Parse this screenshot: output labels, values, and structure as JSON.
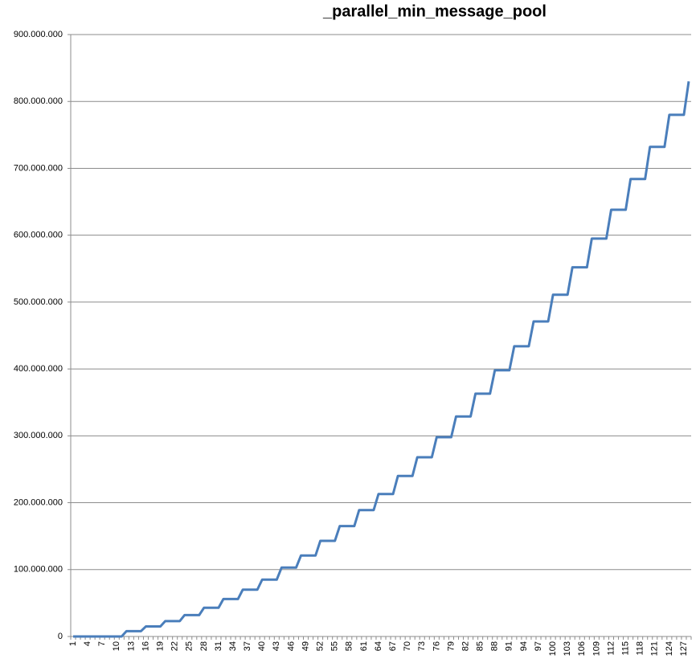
{
  "chart_data": {
    "type": "line",
    "title": "_parallel_min_message_pool",
    "categories": [
      "1",
      null,
      null,
      "4",
      null,
      null,
      "7",
      null,
      null,
      "10",
      null,
      null,
      "13",
      null,
      null,
      "16",
      null,
      null,
      "19",
      null,
      null,
      "22",
      null,
      null,
      "25",
      null,
      null,
      "28",
      null,
      null,
      "31",
      null,
      null,
      "34",
      null,
      null,
      "37",
      null,
      null,
      "40",
      null,
      null,
      "43",
      null,
      null,
      "46",
      null,
      null,
      "49",
      null,
      null,
      "52",
      null,
      null,
      "55",
      null,
      null,
      "58",
      null,
      null,
      "61",
      null,
      null,
      "64",
      null,
      null,
      "67",
      null,
      null,
      "70",
      null,
      null,
      "73",
      null,
      null,
      "76",
      null,
      null,
      "79",
      null,
      null,
      "82",
      null,
      null,
      "85",
      null,
      null,
      "88",
      null,
      null,
      "91",
      null,
      null,
      "94",
      null,
      null,
      "97",
      null,
      null,
      "100",
      null,
      null,
      "103",
      null,
      null,
      "106",
      null,
      null,
      "109",
      null,
      null,
      "112",
      null,
      null,
      "115",
      null,
      null,
      "118",
      null,
      null,
      "121",
      null,
      null,
      "124",
      null,
      null,
      "127",
      null
    ],
    "series": [
      {
        "name": "_parallel_min_message_pool",
        "color": "#4a7ebb",
        "values": [
          0,
          0,
          0,
          0,
          0,
          0,
          0,
          0,
          0,
          0,
          0,
          8000000,
          8000000,
          8000000,
          8000000,
          15000000,
          15000000,
          15000000,
          15000000,
          23000000,
          23000000,
          23000000,
          23000000,
          32000000,
          32000000,
          32000000,
          32000000,
          43000000,
          43000000,
          43000000,
          43000000,
          56000000,
          56000000,
          56000000,
          56000000,
          70000000,
          70000000,
          70000000,
          70000000,
          85000000,
          85000000,
          85000000,
          85000000,
          103000000,
          103000000,
          103000000,
          103000000,
          121000000,
          121000000,
          121000000,
          121000000,
          143000000,
          143000000,
          143000000,
          143000000,
          165000000,
          165000000,
          165000000,
          165000000,
          189000000,
          189000000,
          189000000,
          189000000,
          213000000,
          213000000,
          213000000,
          213000000,
          240000000,
          240000000,
          240000000,
          240000000,
          268000000,
          268000000,
          268000000,
          268000000,
          298000000,
          298000000,
          298000000,
          298000000,
          329000000,
          329000000,
          329000000,
          329000000,
          363000000,
          363000000,
          363000000,
          363000000,
          398000000,
          398000000,
          398000000,
          398000000,
          434000000,
          434000000,
          434000000,
          434000000,
          471000000,
          471000000,
          471000000,
          471000000,
          511000000,
          511000000,
          511000000,
          511000000,
          552000000,
          552000000,
          552000000,
          552000000,
          595000000,
          595000000,
          595000000,
          595000000,
          638000000,
          638000000,
          638000000,
          638000000,
          684000000,
          684000000,
          684000000,
          684000000,
          732000000,
          732000000,
          732000000,
          732000000,
          780000000,
          780000000,
          780000000,
          780000000,
          830000000
        ]
      }
    ],
    "ylim": [
      0,
      900000000
    ],
    "yticks": [
      0,
      {
        "value": 100000000,
        "label": "100.000.000"
      },
      {
        "value": 200000000,
        "label": "200.000.000"
      },
      {
        "value": 300000000,
        "label": "300.000.000"
      },
      {
        "value": 400000000,
        "label": "400.000.000"
      },
      {
        "value": 500000000,
        "label": "500.000.000"
      },
      {
        "value": 600000000,
        "label": "600.000.000"
      },
      {
        "value": 700000000,
        "label": "700.000.000"
      },
      {
        "value": 800000000,
        "label": "800.000.000"
      },
      {
        "value": 900000000,
        "label": "900.000.000"
      }
    ],
    "grid": true
  }
}
